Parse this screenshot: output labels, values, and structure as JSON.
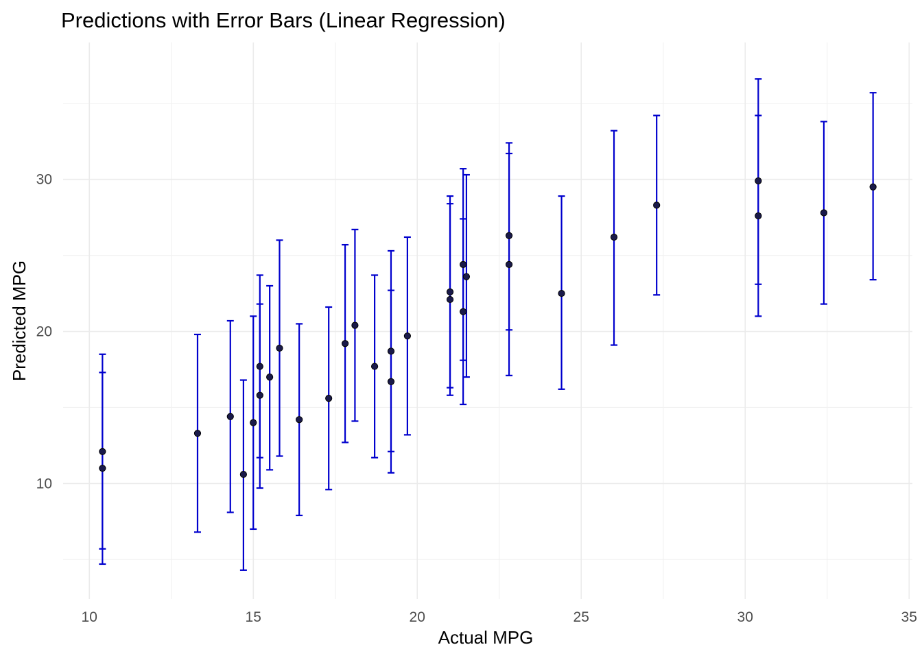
{
  "chart_data": {
    "type": "scatter",
    "title": "Predictions with Error Bars (Linear Regression)",
    "xlabel": "Actual MPG",
    "ylabel": "Predicted MPG",
    "xlim": [
      9.2,
      35.1
    ],
    "ylim": [
      2.4,
      39.0
    ],
    "x_ticks": [
      10,
      15,
      20,
      25,
      30,
      35
    ],
    "y_ticks": [
      10,
      20,
      30
    ],
    "grid": true,
    "colors": {
      "errorbar": "#0000cd",
      "point": "#1a1a4a"
    },
    "points": [
      {
        "x": 10.4,
        "y": 12.1,
        "lower": 5.7,
        "upper": 18.5
      },
      {
        "x": 10.4,
        "y": 11.0,
        "lower": 4.7,
        "upper": 17.3
      },
      {
        "x": 13.3,
        "y": 13.3,
        "lower": 6.8,
        "upper": 19.8
      },
      {
        "x": 14.3,
        "y": 14.4,
        "lower": 8.1,
        "upper": 20.7
      },
      {
        "x": 14.7,
        "y": 10.6,
        "lower": 4.3,
        "upper": 16.8
      },
      {
        "x": 15.0,
        "y": 14.0,
        "lower": 7.0,
        "upper": 21.0
      },
      {
        "x": 15.2,
        "y": 17.7,
        "lower": 11.7,
        "upper": 23.7
      },
      {
        "x": 15.2,
        "y": 15.8,
        "lower": 9.7,
        "upper": 21.8
      },
      {
        "x": 15.5,
        "y": 17.0,
        "lower": 10.9,
        "upper": 23.0
      },
      {
        "x": 15.8,
        "y": 18.9,
        "lower": 11.8,
        "upper": 26.0
      },
      {
        "x": 16.4,
        "y": 14.2,
        "lower": 7.9,
        "upper": 20.5
      },
      {
        "x": 17.3,
        "y": 15.6,
        "lower": 9.6,
        "upper": 21.6
      },
      {
        "x": 17.8,
        "y": 19.2,
        "lower": 12.7,
        "upper": 25.7
      },
      {
        "x": 18.1,
        "y": 20.4,
        "lower": 14.1,
        "upper": 26.7
      },
      {
        "x": 18.7,
        "y": 17.7,
        "lower": 11.7,
        "upper": 23.7
      },
      {
        "x": 19.2,
        "y": 18.7,
        "lower": 12.1,
        "upper": 25.3
      },
      {
        "x": 19.2,
        "y": 16.7,
        "lower": 10.7,
        "upper": 22.7
      },
      {
        "x": 19.7,
        "y": 19.7,
        "lower": 13.2,
        "upper": 26.2
      },
      {
        "x": 21.0,
        "y": 22.6,
        "lower": 16.3,
        "upper": 28.9
      },
      {
        "x": 21.0,
        "y": 22.1,
        "lower": 15.8,
        "upper": 28.4
      },
      {
        "x": 21.4,
        "y": 24.4,
        "lower": 18.1,
        "upper": 30.7
      },
      {
        "x": 21.4,
        "y": 21.3,
        "lower": 15.2,
        "upper": 27.4
      },
      {
        "x": 21.5,
        "y": 23.6,
        "lower": 17.0,
        "upper": 30.3
      },
      {
        "x": 22.8,
        "y": 26.3,
        "lower": 20.1,
        "upper": 32.4
      },
      {
        "x": 22.8,
        "y": 24.4,
        "lower": 17.1,
        "upper": 31.7
      },
      {
        "x": 24.4,
        "y": 22.5,
        "lower": 16.2,
        "upper": 28.9
      },
      {
        "x": 26.0,
        "y": 26.2,
        "lower": 19.1,
        "upper": 33.2
      },
      {
        "x": 27.3,
        "y": 28.3,
        "lower": 22.4,
        "upper": 34.2
      },
      {
        "x": 30.4,
        "y": 29.9,
        "lower": 23.1,
        "upper": 36.6
      },
      {
        "x": 30.4,
        "y": 27.6,
        "lower": 21.0,
        "upper": 34.2
      },
      {
        "x": 32.4,
        "y": 27.8,
        "lower": 21.8,
        "upper": 33.8
      },
      {
        "x": 33.9,
        "y": 29.5,
        "lower": 23.4,
        "upper": 35.7
      }
    ]
  }
}
